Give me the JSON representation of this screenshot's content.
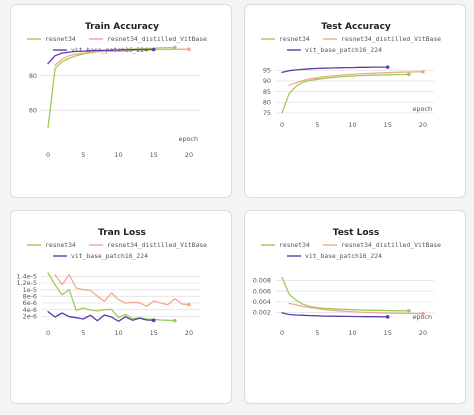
{
  "colors": {
    "resnet34": "#9ccb5a",
    "resnet34_distilled_VitBase": "#f0a98a",
    "vit_base_patch16_224": "#5b3fa8"
  },
  "chart_data": [
    {
      "type": "line",
      "title": "Train Accuracy",
      "xlabel": "epoch",
      "xlim": [
        -1,
        21
      ],
      "ylim": [
        40,
        100
      ],
      "xticks": [
        0,
        5,
        10,
        15,
        20
      ],
      "xtick_labels": [
        "0",
        "5",
        "10",
        "15",
        "20"
      ],
      "yticks": [
        60,
        80
      ],
      "ytick_labels": [
        "60",
        "80"
      ],
      "series": [
        {
          "name": "resnet34",
          "color": "#9ccb5a",
          "x": [
            0,
            1,
            2,
            3,
            4,
            5,
            6,
            7,
            8,
            9,
            10,
            11,
            12,
            13,
            14,
            15,
            16,
            17,
            18
          ],
          "y": [
            50,
            84,
            88,
            90,
            91.5,
            92.5,
            93.2,
            93.8,
            94.2,
            94.5,
            94.8,
            95.1,
            95.3,
            95.5,
            95.7,
            95.8,
            96,
            96.1,
            96.2
          ]
        },
        {
          "name": "resnet34_distilled_VitBase",
          "color": "#f0a98a",
          "x": [
            1,
            2,
            3,
            4,
            5,
            6,
            7,
            8,
            9,
            10,
            11,
            12,
            13,
            14,
            15,
            16,
            17,
            18,
            19,
            20
          ],
          "y": [
            86,
            89.5,
            91.5,
            92.5,
            93,
            93.5,
            93.8,
            94,
            94.2,
            94.4,
            94.6,
            94.7,
            94.8,
            94.9,
            95,
            95.1,
            95.1,
            95.2,
            95.2,
            95.2
          ]
        },
        {
          "name": "vit_base_patch16_224",
          "color": "#5b3fa8",
          "x": [
            0,
            1,
            2,
            3,
            4,
            5,
            6,
            7,
            8,
            9,
            10,
            11,
            12,
            13,
            14,
            15
          ],
          "y": [
            87,
            91.5,
            93,
            93.6,
            94,
            94.2,
            94.4,
            94.5,
            94.6,
            94.7,
            94.8,
            94.9,
            95,
            95,
            95.1,
            95.1
          ]
        }
      ]
    },
    {
      "type": "line",
      "title": "Test Accuracy",
      "xlabel": "epoch",
      "xlim": [
        -1,
        21
      ],
      "ylim": [
        74,
        97.5
      ],
      "xticks": [
        0,
        5,
        10,
        15,
        20
      ],
      "xtick_labels": [
        "0",
        "5",
        "10",
        "15",
        "20"
      ],
      "yticks": [
        75,
        80,
        85,
        90,
        95
      ],
      "ytick_labels": [
        "75",
        "80",
        "85",
        "90",
        "95"
      ],
      "series": [
        {
          "name": "resnet34",
          "color": "#9ccb5a",
          "x": [
            0,
            1,
            2,
            3,
            4,
            5,
            6,
            7,
            8,
            9,
            10,
            11,
            12,
            13,
            14,
            15,
            16,
            17,
            18
          ],
          "y": [
            75,
            84,
            87.5,
            89.5,
            90.2,
            90.8,
            91.2,
            91.6,
            91.9,
            92.1,
            92.3,
            92.5,
            92.6,
            92.7,
            92.8,
            92.9,
            93,
            93,
            93.1
          ]
        },
        {
          "name": "resnet34_distilled_VitBase",
          "color": "#f0a98a",
          "x": [
            1,
            2,
            3,
            4,
            5,
            6,
            7,
            8,
            9,
            10,
            11,
            12,
            13,
            14,
            15,
            16,
            17,
            18,
            19,
            20
          ],
          "y": [
            88,
            89.2,
            90.2,
            91,
            91.5,
            92,
            92.3,
            92.6,
            92.9,
            93.1,
            93.3,
            93.5,
            93.6,
            93.8,
            93.9,
            94,
            94.1,
            94.2,
            94.3,
            94.3
          ]
        },
        {
          "name": "vit_base_patch16_224",
          "color": "#5b3fa8",
          "x": [
            0,
            1,
            2,
            3,
            4,
            5,
            6,
            7,
            8,
            9,
            10,
            11,
            12,
            13,
            14,
            15
          ],
          "y": [
            94,
            94.8,
            95.2,
            95.5,
            95.7,
            95.9,
            96,
            96.1,
            96.2,
            96.3,
            96.3,
            96.4,
            96.4,
            96.5,
            96.5,
            96.5
          ]
        }
      ]
    },
    {
      "type": "line",
      "title": "Tran Loss",
      "xlabel": "",
      "xlim": [
        -1,
        21
      ],
      "ylim": [
        0,
        1.5e-05
      ],
      "xticks": [
        0,
        5,
        10,
        15,
        20
      ],
      "xtick_labels": [
        "0",
        "5",
        "10",
        "15",
        "20"
      ],
      "yticks": [
        2e-06,
        4e-06,
        6e-06,
        8e-06,
        1e-05,
        1.2e-05,
        1.4e-05
      ],
      "ytick_labels": [
        "2e-6",
        "4e-6",
        "6e-6",
        "8e-6",
        "1e-5",
        "1.2e-5",
        "1.4e-5"
      ],
      "series": [
        {
          "name": "resnet34",
          "color": "#9ccb5a",
          "x": [
            0,
            1,
            2,
            3,
            4,
            5,
            6,
            7,
            8,
            9,
            10,
            11,
            12,
            13,
            14,
            15,
            16,
            17,
            18
          ],
          "y": [
            1.5e-05,
            1.15e-05,
            8.5e-06,
            1e-05,
            3.8e-06,
            4.5e-06,
            3.9e-06,
            3.6e-06,
            4e-06,
            4.1e-06,
            1.6e-06,
            2.6e-06,
            1.3e-06,
            1.6e-06,
            1.2e-06,
            1.1e-06,
            9e-07,
            8e-07,
            7e-07
          ]
        },
        {
          "name": "resnet34_distilled_VitBase",
          "color": "#f0a98a",
          "x": [
            1,
            2,
            3,
            4,
            5,
            6,
            7,
            8,
            9,
            10,
            11,
            12,
            13,
            14,
            15,
            16,
            17,
            18,
            19,
            20
          ],
          "y": [
            1.45e-05,
            1.15e-05,
            1.45e-05,
            1.05e-05,
            1e-05,
            9.8e-06,
            8e-06,
            6.5e-06,
            9e-06,
            7e-06,
            6e-06,
            6.2e-06,
            6.1e-06,
            5e-06,
            6.6e-06,
            6e-06,
            5.5e-06,
            7.3e-06,
            5.7e-06,
            5.5e-06
          ]
        },
        {
          "name": "vit_base_patch16_224",
          "color": "#5b3fa8",
          "x": [
            0,
            1,
            2,
            3,
            4,
            5,
            6,
            7,
            8,
            9,
            10,
            11,
            12,
            13,
            14,
            15
          ],
          "y": [
            3.4e-06,
            1.8e-06,
            3e-06,
            1.9e-06,
            1.6e-06,
            1.2e-06,
            2.3e-06,
            7e-07,
            2.4e-06,
            1.8e-06,
            5e-07,
            1.9e-06,
            8e-07,
            1.4e-06,
            9e-07,
            8e-07
          ]
        }
      ]
    },
    {
      "type": "line",
      "title": "Test Loss",
      "xlabel": "epoch",
      "xlim": [
        -1,
        21
      ],
      "ylim": [
        0,
        0.0094
      ],
      "xticks": [
        0,
        5,
        10,
        15,
        20
      ],
      "xtick_labels": [
        "0",
        "5",
        "10",
        "15",
        "20"
      ],
      "yticks": [
        0.002,
        0.004,
        0.006,
        0.008
      ],
      "ytick_labels": [
        "0.002",
        "0.004",
        "0.006",
        "0.008"
      ],
      "series": [
        {
          "name": "resnet34",
          "color": "#9ccb5a",
          "x": [
            0,
            1,
            2,
            3,
            4,
            5,
            6,
            7,
            8,
            9,
            10,
            11,
            12,
            13,
            14,
            15,
            16,
            17,
            18
          ],
          "y": [
            0.0086,
            0.0054,
            0.0043,
            0.0035,
            0.0031,
            0.0029,
            0.00275,
            0.0027,
            0.0026,
            0.00255,
            0.0025,
            0.00245,
            0.0024,
            0.00238,
            0.00236,
            0.00234,
            0.00232,
            0.0023,
            0.0023
          ]
        },
        {
          "name": "resnet34_distilled_VitBase",
          "color": "#f0a98a",
          "x": [
            1,
            2,
            3,
            4,
            5,
            6,
            7,
            8,
            9,
            10,
            11,
            12,
            13,
            14,
            15,
            16,
            17,
            18,
            19,
            20
          ],
          "y": [
            0.0037,
            0.0034,
            0.0031,
            0.0029,
            0.0027,
            0.0025,
            0.0024,
            0.0023,
            0.0022,
            0.0021,
            0.00205,
            0.002,
            0.00195,
            0.0019,
            0.00187,
            0.00185,
            0.00182,
            0.0018,
            0.00178,
            0.00175
          ]
        },
        {
          "name": "vit_base_patch16_224",
          "color": "#5b3fa8",
          "x": [
            0,
            1,
            2,
            3,
            4,
            5,
            6,
            7,
            8,
            9,
            10,
            11,
            12,
            13,
            14,
            15
          ],
          "y": [
            0.0019,
            0.0016,
            0.0015,
            0.00145,
            0.0014,
            0.00135,
            0.0013,
            0.00128,
            0.00126,
            0.00124,
            0.00122,
            0.0012,
            0.00119,
            0.00118,
            0.00117,
            0.00116
          ]
        }
      ]
    }
  ]
}
